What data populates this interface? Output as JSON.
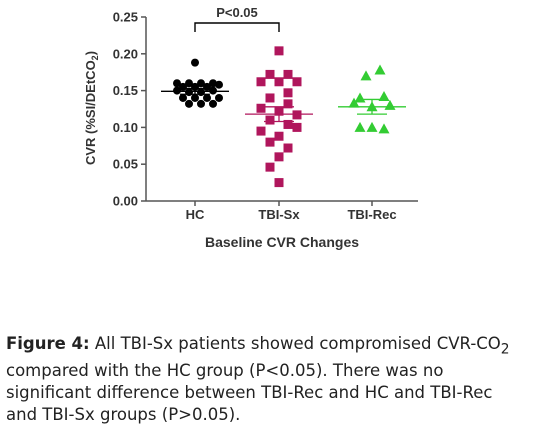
{
  "chart_data": {
    "type": "scatter",
    "ylabel_parts": [
      "CVR (%SI/DEtCO",
      "2",
      ")"
    ],
    "xlabel": "Baseline CVR Changes",
    "ylim": [
      0,
      0.25
    ],
    "yticks": [
      "0.00",
      "0.05",
      "0.10",
      "0.15",
      "0.20",
      "0.25"
    ],
    "ytick_values": [
      0,
      0.05,
      0.1,
      0.15,
      0.2,
      0.25
    ],
    "categories": [
      "HC",
      "TBI-Sx",
      "TBI-Rec"
    ],
    "significance": {
      "label": "P<0.05",
      "from": "HC",
      "to": "TBI-Sx"
    },
    "series": [
      {
        "category": "HC",
        "marker": "circle",
        "color": "#000000",
        "mean": 0.149,
        "sem_low": 0.145,
        "sem_high": 0.153,
        "points": [
          [
            -18,
            0.16
          ],
          [
            -6,
            0.16
          ],
          [
            6,
            0.16
          ],
          [
            18,
            0.16
          ],
          [
            -12,
            0.155
          ],
          [
            0,
            0.155
          ],
          [
            12,
            0.155
          ],
          [
            24,
            0.158
          ],
          [
            -18,
            0.15
          ],
          [
            -6,
            0.148
          ],
          [
            6,
            0.148
          ],
          [
            18,
            0.15
          ],
          [
            -12,
            0.14
          ],
          [
            0,
            0.14
          ],
          [
            12,
            0.14
          ],
          [
            24,
            0.14
          ],
          [
            -6,
            0.132
          ],
          [
            6,
            0.132
          ],
          [
            18,
            0.132
          ],
          [
            0,
            0.188
          ]
        ]
      },
      {
        "category": "TBI-Sx",
        "marker": "square",
        "color": "#b0165c",
        "mean": 0.118,
        "sem_low": 0.108,
        "sem_high": 0.128,
        "points": [
          [
            0,
            0.204
          ],
          [
            -9,
            0.172
          ],
          [
            9,
            0.172
          ],
          [
            -18,
            0.162
          ],
          [
            0,
            0.162
          ],
          [
            18,
            0.162
          ],
          [
            9,
            0.147
          ],
          [
            -9,
            0.14
          ],
          [
            9,
            0.132
          ],
          [
            -18,
            0.126
          ],
          [
            0,
            0.122
          ],
          [
            18,
            0.117
          ],
          [
            -9,
            0.11
          ],
          [
            9,
            0.104
          ],
          [
            18,
            0.1
          ],
          [
            -18,
            0.095
          ],
          [
            0,
            0.088
          ],
          [
            -9,
            0.08
          ],
          [
            9,
            0.072
          ],
          [
            0,
            0.06
          ],
          [
            -9,
            0.046
          ],
          [
            0,
            0.025
          ]
        ]
      },
      {
        "category": "TBI-Rec",
        "marker": "triangle",
        "color": "#33cc33",
        "mean": 0.128,
        "sem_low": 0.118,
        "sem_high": 0.138,
        "points": [
          [
            8,
            0.178
          ],
          [
            -6,
            0.17
          ],
          [
            -12,
            0.14
          ],
          [
            12,
            0.142
          ],
          [
            -18,
            0.133
          ],
          [
            0,
            0.128
          ],
          [
            18,
            0.13
          ],
          [
            -12,
            0.1
          ],
          [
            12,
            0.098
          ],
          [
            0,
            0.1
          ]
        ]
      }
    ]
  },
  "caption": {
    "bold": "Figure 4:",
    "line1_rest": " All TBI-Sx patients showed compromised CVR-CO",
    "line1_sub": "2",
    "line2": "compared with the HC group (P<0.05). There was no",
    "line3": "significant difference between TBI-Rec and HC and TBI-Rec",
    "line4": "and TBI-Sx groups (P>0.05)."
  }
}
